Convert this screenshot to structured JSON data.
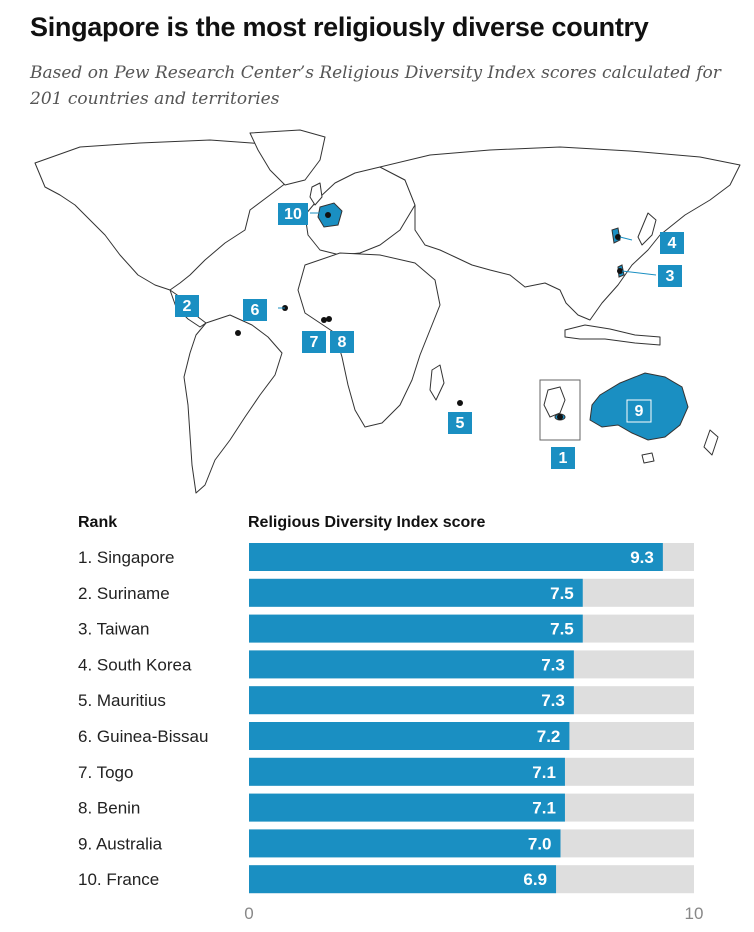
{
  "title": "Singapore is the most religiously diverse country",
  "subtitle": "Based on Pew Research Center’s Religious Diversity Index scores calculated for 201 countries and territories",
  "colors": {
    "bar": "#1a8fc2",
    "track": "#dedede",
    "land": "#ffffff",
    "border": "#333333",
    "label": "#1a8fc2"
  },
  "map": {
    "markers": [
      {
        "rank": "1",
        "country": "Singapore"
      },
      {
        "rank": "2",
        "country": "Suriname"
      },
      {
        "rank": "3",
        "country": "Taiwan"
      },
      {
        "rank": "4",
        "country": "South Korea"
      },
      {
        "rank": "5",
        "country": "Mauritius"
      },
      {
        "rank": "6",
        "country": "Guinea-Bissau"
      },
      {
        "rank": "7",
        "country": "Togo"
      },
      {
        "rank": "8",
        "country": "Benin"
      },
      {
        "rank": "9",
        "country": "Australia"
      },
      {
        "rank": "10",
        "country": "France"
      }
    ]
  },
  "chart_data": {
    "type": "bar",
    "orientation": "horizontal",
    "rank_header": "Rank",
    "value_header": "Religious Diversity Index score",
    "categories": [
      "1. Singapore",
      "2. Suriname",
      "3. Taiwan",
      "4. South Korea",
      "5. Mauritius",
      "6. Guinea-Bissau",
      "7. Togo",
      "8. Benin",
      "9. Australia",
      "10. France"
    ],
    "values": [
      9.3,
      7.5,
      7.5,
      7.3,
      7.3,
      7.2,
      7.1,
      7.1,
      7.0,
      6.9
    ],
    "value_labels": [
      "9.3",
      "7.5",
      "7.5",
      "7.3",
      "7.3",
      "7.2",
      "7.1",
      "7.1",
      "7.0",
      "6.9"
    ],
    "xlim": [
      0,
      10
    ],
    "xticks": [
      "0",
      "10"
    ],
    "grid": false
  }
}
